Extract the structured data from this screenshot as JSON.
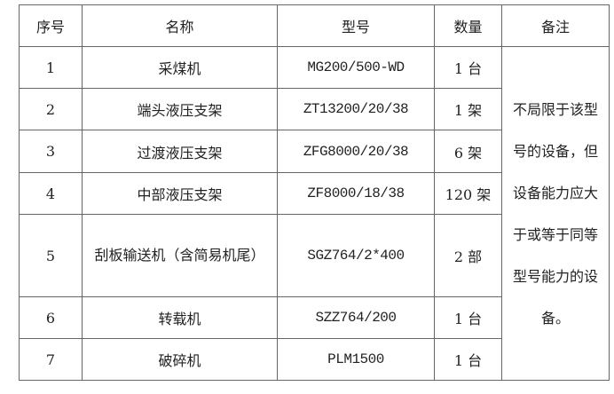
{
  "headers": [
    "序号",
    "名称",
    "型号",
    "数量",
    "备注"
  ],
  "rows": [
    {
      "no": "1",
      "name": "采煤机",
      "model": "MG200/500-WD",
      "qty": "1 台"
    },
    {
      "no": "2",
      "name": "端头液压支架",
      "model": "ZT13200/20/38",
      "qty": "1 架"
    },
    {
      "no": "3",
      "name": "过渡液压支架",
      "model": "ZFG8000/20/38",
      "qty": "6 架"
    },
    {
      "no": "4",
      "name": "中部液压支架",
      "model": "ZF8000/18/38",
      "qty": "120 架"
    },
    {
      "no": "5",
      "name": "刮板输送机（含简易机尾）",
      "model": "SGZ764/2*400",
      "qty": "2 部"
    },
    {
      "no": "6",
      "name": "转载机",
      "model": "SZZ764/200",
      "qty": "1 台"
    },
    {
      "no": "7",
      "name": "破碎机",
      "model": "PLM1500",
      "qty": "1 台"
    }
  ],
  "remark": "不局限于该型号的设备，但设备能力应大于或等于同等型号能力的设备。"
}
